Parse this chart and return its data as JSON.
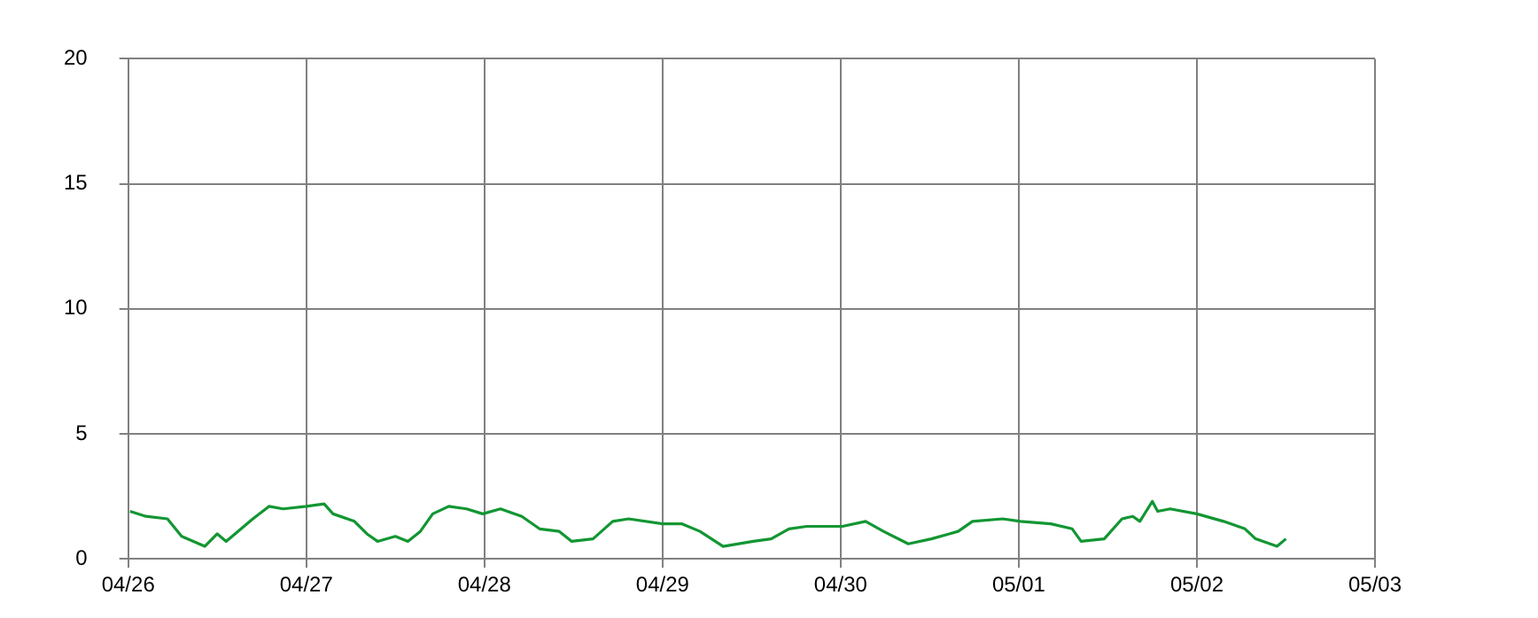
{
  "chart_data": {
    "type": "line",
    "x": [
      "--04-26T00:15",
      "--04-26T02:24",
      "--04-26T05:17",
      "--04-26T07:12",
      "--04-26T10:19",
      "--04-26T12:00",
      "--04-26T13:12",
      "--04-26T16:48",
      "--04-26T18:58",
      "--04-26T20:53",
      "--04-27T00:00",
      "--04-27T02:24",
      "--04-27T03:36",
      "--04-27T06:29",
      "--04-27T08:10",
      "--04-27T09:36",
      "--04-27T12:00",
      "--04-27T13:41",
      "--04-27T15:22",
      "--04-27T17:02",
      "--04-27T19:12",
      "--04-27T21:36",
      "--04-27T23:46",
      "--04-28T02:10",
      "--04-28T05:02",
      "--04-28T07:26",
      "--04-28T10:05",
      "--04-28T11:46",
      "--04-28T14:38",
      "--04-28T17:17",
      "--04-28T19:26",
      "--04-29T00:00",
      "--04-29T02:38",
      "--04-29T05:02",
      "--04-29T08:10",
      "--04-29T12:14",
      "--04-29T14:38",
      "--04-29T17:02",
      "--04-29T19:26",
      "--04-30T00:14",
      "--04-30T03:22",
      "--04-30T05:46",
      "--04-30T09:07",
      "--04-30T12:14",
      "--04-30T14:38",
      "--04-30T15:50",
      "--04-30T17:46",
      "--04-30T21:50",
      "--05-01T00:14",
      "--05-01T04:19",
      "--05-01T07:12",
      "--05-01T08:24",
      "--05-01T11:31",
      "--05-01T13:55",
      "--05-01T15:22",
      "--05-01T16:19",
      "--05-01T18:00",
      "--05-01T18:43",
      "--05-01T20:24",
      "--05-02T00:00",
      "--05-02T03:36",
      "--05-02T06:29",
      "--05-02T07:55",
      "--05-02T10:48",
      "--05-02T12:00"
    ],
    "series": [
      {
        "color": "#129632",
        "values": [
          1.9,
          1.7,
          1.6,
          0.9,
          0.5,
          1.0,
          0.7,
          1.6,
          2.1,
          2.0,
          2.1,
          2.2,
          1.8,
          1.5,
          1.0,
          0.7,
          0.9,
          0.7,
          1.1,
          1.8,
          2.1,
          2.0,
          1.8,
          2.0,
          1.7,
          1.2,
          1.1,
          0.7,
          0.8,
          1.5,
          1.6,
          1.4,
          1.4,
          1.1,
          0.5,
          0.7,
          0.8,
          1.2,
          1.3,
          1.3,
          1.5,
          1.1,
          0.6,
          0.8,
          1.0,
          1.1,
          1.5,
          1.6,
          1.5,
          1.4,
          1.2,
          0.7,
          0.8,
          1.6,
          1.7,
          1.5,
          2.3,
          1.9,
          2.0,
          1.8,
          1.5,
          1.2,
          0.8,
          0.5,
          0.8
        ]
      }
    ],
    "xlim": [
      "--04-26",
      "--05-03"
    ],
    "xticks": [
      {
        "value": "--04-26",
        "label": "04/26"
      },
      {
        "value": "--04-27",
        "label": "04/27"
      },
      {
        "value": "--04-28",
        "label": "04/28"
      },
      {
        "value": "--04-29",
        "label": "04/29"
      },
      {
        "value": "--04-30",
        "label": "04/30"
      },
      {
        "value": "--05-01",
        "label": "05/01"
      },
      {
        "value": "--05-02",
        "label": "05/02"
      },
      {
        "value": "--05-03",
        "label": "05/03"
      }
    ],
    "ylim": [
      0,
      20
    ],
    "yticks": [
      0,
      5,
      10,
      15,
      20
    ],
    "grid": true,
    "legend": false,
    "marker": "none",
    "line_style": "solid"
  }
}
